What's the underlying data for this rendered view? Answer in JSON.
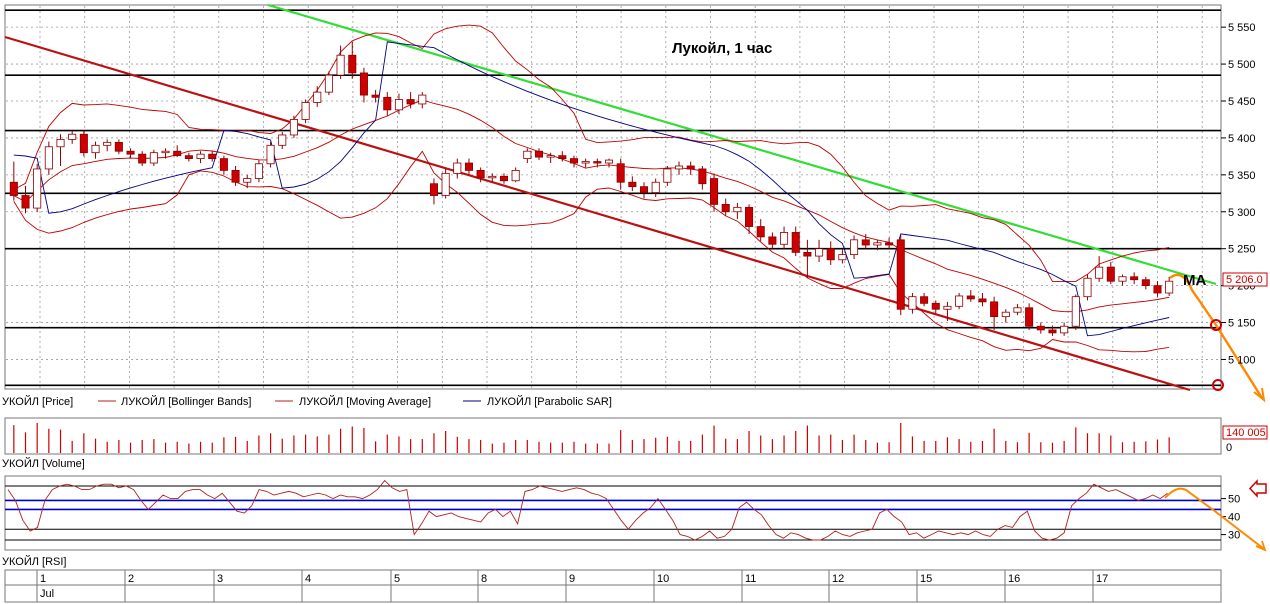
{
  "chart_data": {
    "type": "candlestick",
    "title": "Лукойл,  1 час",
    "price_panel": {
      "ylim": [
        5060,
        5580
      ],
      "y_ticks": [
        "5 550",
        "5 500",
        "5 450",
        "5 400",
        "5 350",
        "5 300",
        "5 250",
        "5 200",
        "5 150",
        "5 100"
      ],
      "y_tick_values": [
        5550,
        5500,
        5450,
        5400,
        5350,
        5300,
        5250,
        5200,
        5150,
        5100
      ],
      "horizontal_levels": [
        5573,
        5485,
        5410,
        5325,
        5250,
        5143,
        5065
      ],
      "last_price_label": "5 206.0",
      "last_price": 5206,
      "ma_label": "MA",
      "candles": [
        [
          5340,
          5368,
          5315,
          5322
        ],
        [
          5322,
          5335,
          5298,
          5305
        ],
        [
          5305,
          5365,
          5300,
          5358
        ],
        [
          5358,
          5395,
          5350,
          5388
        ],
        [
          5388,
          5405,
          5362,
          5398
        ],
        [
          5398,
          5410,
          5392,
          5405
        ],
        [
          5405,
          5410,
          5375,
          5380
        ],
        [
          5380,
          5395,
          5372,
          5390
        ],
        [
          5390,
          5398,
          5382,
          5394
        ],
        [
          5394,
          5398,
          5378,
          5382
        ],
        [
          5382,
          5386,
          5372,
          5378
        ],
        [
          5378,
          5382,
          5362,
          5366
        ],
        [
          5366,
          5384,
          5362,
          5380
        ],
        [
          5380,
          5386,
          5372,
          5382
        ],
        [
          5382,
          5390,
          5374,
          5376
        ],
        [
          5376,
          5380,
          5368,
          5372
        ],
        [
          5372,
          5382,
          5366,
          5378
        ],
        [
          5378,
          5382,
          5368,
          5372
        ],
        [
          5372,
          5376,
          5350,
          5356
        ],
        [
          5356,
          5362,
          5335,
          5340
        ],
        [
          5340,
          5350,
          5332,
          5345
        ],
        [
          5345,
          5370,
          5340,
          5365
        ],
        [
          5365,
          5395,
          5360,
          5390
        ],
        [
          5390,
          5408,
          5385,
          5404
        ],
        [
          5404,
          5430,
          5400,
          5425
        ],
        [
          5425,
          5452,
          5420,
          5448
        ],
        [
          5448,
          5470,
          5442,
          5462
        ],
        [
          5462,
          5490,
          5458,
          5485
        ],
        [
          5485,
          5525,
          5480,
          5512
        ],
        [
          5512,
          5530,
          5480,
          5488
        ],
        [
          5488,
          5495,
          5448,
          5458
        ],
        [
          5458,
          5465,
          5448,
          5455
        ],
        [
          5455,
          5462,
          5430,
          5438
        ],
        [
          5438,
          5460,
          5432,
          5452
        ],
        [
          5452,
          5462,
          5440,
          5446
        ],
        [
          5446,
          5462,
          5440,
          5458
        ],
        [
          5338,
          5345,
          5310,
          5322
        ],
        [
          5322,
          5358,
          5318,
          5352
        ],
        [
          5352,
          5372,
          5345,
          5366
        ],
        [
          5366,
          5372,
          5350,
          5356
        ],
        [
          5356,
          5360,
          5340,
          5346
        ],
        [
          5346,
          5352,
          5340,
          5348
        ],
        [
          5348,
          5352,
          5338,
          5342
        ],
        [
          5342,
          5360,
          5340,
          5356
        ],
        [
          5372,
          5386,
          5366,
          5382
        ],
        [
          5382,
          5386,
          5370,
          5374
        ],
        [
          5374,
          5380,
          5366,
          5376
        ],
        [
          5376,
          5382,
          5368,
          5372
        ],
        [
          5372,
          5376,
          5360,
          5366
        ],
        [
          5366,
          5372,
          5360,
          5368
        ],
        [
          5368,
          5372,
          5360,
          5366
        ],
        [
          5366,
          5372,
          5360,
          5370
        ],
        [
          5365,
          5372,
          5330,
          5340
        ],
        [
          5340,
          5348,
          5328,
          5334
        ],
        [
          5334,
          5340,
          5318,
          5326
        ],
        [
          5326,
          5345,
          5320,
          5340
        ],
        [
          5340,
          5362,
          5335,
          5358
        ],
        [
          5358,
          5368,
          5350,
          5362
        ],
        [
          5362,
          5368,
          5350,
          5358
        ],
        [
          5358,
          5362,
          5330,
          5338
        ],
        [
          5345,
          5352,
          5300,
          5310
        ],
        [
          5310,
          5318,
          5295,
          5300
        ],
        [
          5300,
          5312,
          5290,
          5306
        ],
        [
          5306,
          5310,
          5270,
          5280
        ],
        [
          5280,
          5290,
          5260,
          5266
        ],
        [
          5266,
          5272,
          5250,
          5256
        ],
        [
          5256,
          5280,
          5250,
          5272
        ],
        [
          5272,
          5280,
          5240,
          5245
        ],
        [
          5245,
          5262,
          5210,
          5240
        ],
        [
          5240,
          5262,
          5232,
          5250
        ],
        [
          5250,
          5260,
          5228,
          5235
        ],
        [
          5235,
          5250,
          5230,
          5242
        ],
        [
          5242,
          5268,
          5236,
          5262
        ],
        [
          5262,
          5270,
          5250,
          5255
        ],
        [
          5255,
          5262,
          5248,
          5258
        ],
        [
          5258,
          5265,
          5250,
          5255
        ],
        [
          5262,
          5268,
          5160,
          5168
        ],
        [
          5168,
          5190,
          5162,
          5185
        ],
        [
          5185,
          5190,
          5172,
          5176
        ],
        [
          5176,
          5180,
          5162,
          5168
        ],
        [
          5168,
          5178,
          5152,
          5172
        ],
        [
          5172,
          5190,
          5168,
          5186
        ],
        [
          5186,
          5194,
          5178,
          5182
        ],
        [
          5182,
          5190,
          5172,
          5178
        ],
        [
          5178,
          5185,
          5140,
          5158
        ],
        [
          5158,
          5168,
          5150,
          5164
        ],
        [
          5164,
          5175,
          5160,
          5170
        ],
        [
          5170,
          5176,
          5140,
          5145
        ],
        [
          5145,
          5150,
          5135,
          5140
        ],
        [
          5140,
          5146,
          5132,
          5136
        ],
        [
          5136,
          5150,
          5132,
          5145
        ],
        [
          5145,
          5188,
          5140,
          5185
        ],
        [
          5185,
          5215,
          5180,
          5210
        ],
        [
          5210,
          5240,
          5205,
          5225
        ],
        [
          5225,
          5232,
          5202,
          5206
        ],
        [
          5206,
          5215,
          5200,
          5212
        ],
        [
          5212,
          5218,
          5202,
          5208
        ],
        [
          5208,
          5212,
          5195,
          5200
        ],
        [
          5200,
          5206,
          5185,
          5190
        ],
        [
          5190,
          5212,
          5186,
          5206
        ]
      ]
    },
    "volume_panel": {
      "value_label": "140 005",
      "zero_label": "0",
      "max_value": 140005
    },
    "rsi_panel": {
      "ticks": [
        "50",
        "40",
        "30"
      ],
      "tick_values": [
        50,
        40,
        30
      ],
      "ylim": [
        22,
        62
      ],
      "levels": [
        57,
        49,
        44,
        33,
        27
      ],
      "values": [
        55,
        49,
        38,
        32,
        34,
        49,
        55,
        57,
        58,
        57,
        55,
        55,
        57,
        58,
        58,
        56,
        57,
        55,
        49,
        44,
        48,
        52,
        50,
        50,
        54,
        55,
        55,
        52,
        50,
        53,
        48,
        43,
        42,
        46,
        55,
        54,
        52,
        53,
        54,
        53,
        51,
        52,
        53,
        52,
        50,
        52,
        51,
        51,
        50,
        52,
        55,
        60,
        56,
        54,
        55,
        30,
        36,
        43,
        40,
        41,
        42,
        40,
        39,
        38,
        37,
        42,
        44,
        40,
        43,
        36,
        54,
        55,
        57,
        56,
        55,
        54,
        55,
        56,
        55,
        53,
        52,
        50,
        44,
        38,
        33,
        38,
        42,
        45,
        50,
        44,
        38,
        30,
        29,
        27,
        29,
        32,
        28,
        29,
        33,
        45,
        48,
        44,
        41,
        35,
        30,
        28,
        31,
        30,
        28,
        27,
        27,
        29,
        32,
        30,
        29,
        31,
        32,
        33,
        42,
        44,
        40,
        37,
        30,
        31,
        28,
        30,
        32,
        31,
        30,
        31,
        30,
        32,
        30,
        29,
        33,
        35,
        34,
        40,
        43,
        32,
        28,
        27,
        28,
        31,
        46,
        50,
        53,
        58,
        56,
        54,
        55,
        53,
        51,
        49,
        50,
        52,
        50,
        53
      ]
    },
    "legend": [
      "УКОЙЛ [Price]",
      "ЛУКОЙЛ [Bollinger Bands]",
      "ЛУКОЙЛ [Moving Average]",
      "ЛУКОЙЛ [Parabolic SAR]"
    ],
    "volume_legend": "УКОЙЛ [Volume]",
    "rsi_legend": "УКОЙЛ [RSI]",
    "x_axis": {
      "days": [
        "1",
        "2",
        "3",
        "4",
        "5",
        "8",
        "9",
        "10",
        "11",
        "12",
        "15",
        "16",
        "17"
      ],
      "month": "Jul"
    },
    "colors": {
      "bear": "#cc0000",
      "bull": "#ffffff",
      "bands": "#c00000",
      "sar": "#000080",
      "resistance": "#33dd33",
      "support": "#bb1111",
      "forecast": "#ff8800",
      "rsi_levels": "#0000cc",
      "rsi": "#b02020"
    }
  }
}
